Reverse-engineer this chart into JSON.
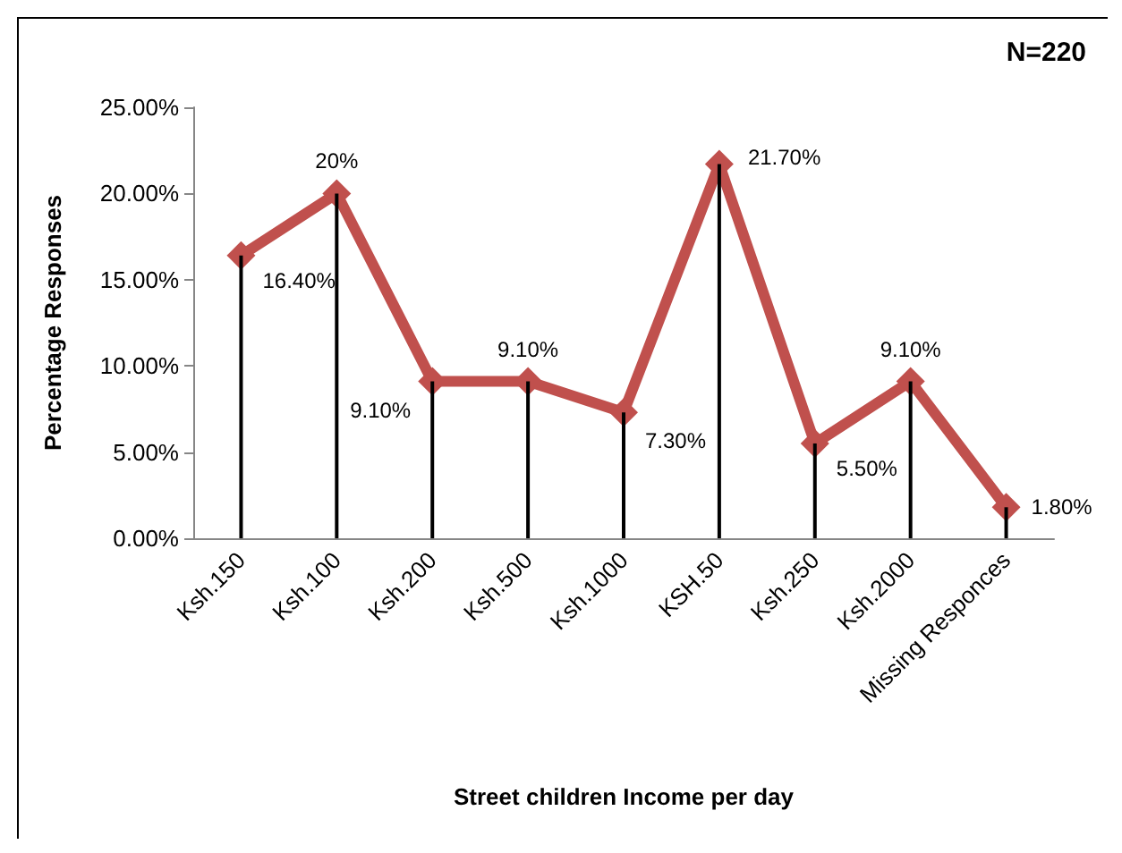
{
  "chart_data": {
    "type": "line",
    "xlabel": "Street children Income per day",
    "ylabel": "Percentage Responses",
    "annotations": [
      "N=220"
    ],
    "categories": [
      "Ksh.150",
      "Ksh.100",
      "Ksh.200",
      "Ksh.500",
      "Ksh.1000",
      "KSH.50",
      "Ksh.250",
      "Ksh.2000",
      "Missing Responces"
    ],
    "series": [
      {
        "color": "#c0504d",
        "values": [
          16.4,
          20,
          9.1,
          9.1,
          7.3,
          21.7,
          5.5,
          9.1,
          1.8
        ],
        "value_labels": [
          "16.40%",
          "20%",
          "9.10%",
          "9.10%",
          "7.30%",
          "21.70%",
          "5.50%",
          "9.10%",
          "1.80%"
        ]
      },
      {
        "type": "bar",
        "color": "#000000",
        "values": [
          16.4,
          20,
          9.1,
          9.1,
          7.3,
          21.7,
          5.5,
          9.1,
          1.8
        ]
      }
    ],
    "ylim": [
      0,
      25
    ],
    "yticks": [
      {
        "value": 0,
        "label": "0.00%"
      },
      {
        "value": 5,
        "label": "5.00%"
      },
      {
        "value": 10,
        "label": "10.00%"
      },
      {
        "value": 15,
        "label": "15.00%"
      },
      {
        "value": 20,
        "label": "20.00%"
      },
      {
        "value": 25,
        "label": "25.00%"
      }
    ],
    "marker": "diamond",
    "line_style": "solid"
  }
}
